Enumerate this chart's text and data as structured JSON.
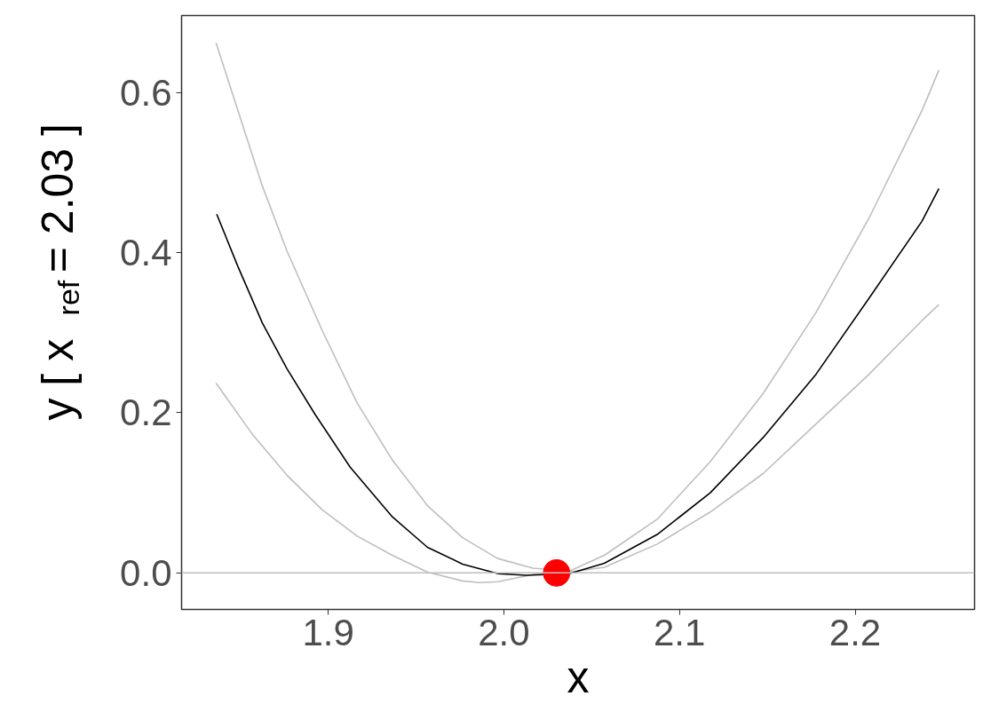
{
  "chart_data": {
    "type": "line",
    "xlabel": "x",
    "ylabel": "y [ x$_{ref}$ = 2.03 ]",
    "xlim": [
      1.8165,
      2.268
    ],
    "ylim": [
      -0.0456,
      0.696
    ],
    "xticks": [
      1.9,
      {
        "value": 2.0,
        "label": "2.0"
      },
      2.1,
      2.2
    ],
    "yticks": [
      {
        "value": 0.0,
        "label": "0.0"
      },
      0.2,
      0.4,
      0.6
    ],
    "grid": false,
    "series": [
      {
        "color": "#bebebe",
        "x": [
          1.8361,
          1.8485,
          1.8625,
          1.8765,
          1.8965,
          1.9165,
          1.9365,
          1.9565,
          1.9765,
          1.9965,
          2.0165,
          2.0371,
          2.0572,
          2.0873,
          2.1175,
          2.1476,
          2.1777,
          2.2079,
          2.238,
          2.2477
        ],
        "values": [
          0.662,
          0.578,
          0.483,
          0.402,
          0.303,
          0.212,
          0.141,
          0.084,
          0.044,
          0.018,
          0.006,
          0.002,
          0.022,
          0.067,
          0.139,
          0.224,
          0.325,
          0.443,
          0.577,
          0.628
        ]
      },
      {
        "color": "#bebebe",
        "x": [
          1.8361,
          1.8565,
          1.8765,
          1.8965,
          1.9165,
          1.9365,
          1.9565,
          1.9765,
          1.9865,
          1.9965,
          2.0165,
          2.0371,
          2.0572,
          2.0873,
          2.1175,
          2.1476,
          2.1777,
          2.2079,
          2.238,
          2.2477
        ],
        "values": [
          0.237,
          0.174,
          0.122,
          0.079,
          0.046,
          0.022,
          0.001,
          -0.01,
          -0.012,
          -0.011,
          -0.002,
          0.001,
          0.007,
          0.036,
          0.076,
          0.124,
          0.186,
          0.248,
          0.315,
          0.335
        ]
      },
      {
        "color": "#000000",
        "x": [
          1.8365,
          1.8485,
          1.8625,
          1.8765,
          1.8925,
          1.9125,
          1.9365,
          1.9565,
          1.9765,
          1.9968,
          2.0128,
          2.0371,
          2.0572,
          2.0873,
          2.1175,
          2.1476,
          2.1777,
          2.2079,
          2.238,
          2.2477
        ],
        "values": [
          0.448,
          0.383,
          0.312,
          0.255,
          0.198,
          0.132,
          0.07,
          0.032,
          0.011,
          -0.001,
          -0.003,
          -0.001,
          0.012,
          0.048,
          0.1,
          0.169,
          0.248,
          0.343,
          0.439,
          0.48
        ]
      },
      {
        "type": "scatter",
        "color": "#ff0000",
        "x": [
          2.03
        ],
        "values": [
          0.0
        ],
        "marker": "circle"
      }
    ],
    "ref_lines": [
      {
        "axis": "y",
        "value": 0.0,
        "color": "#bebebe"
      }
    ]
  }
}
